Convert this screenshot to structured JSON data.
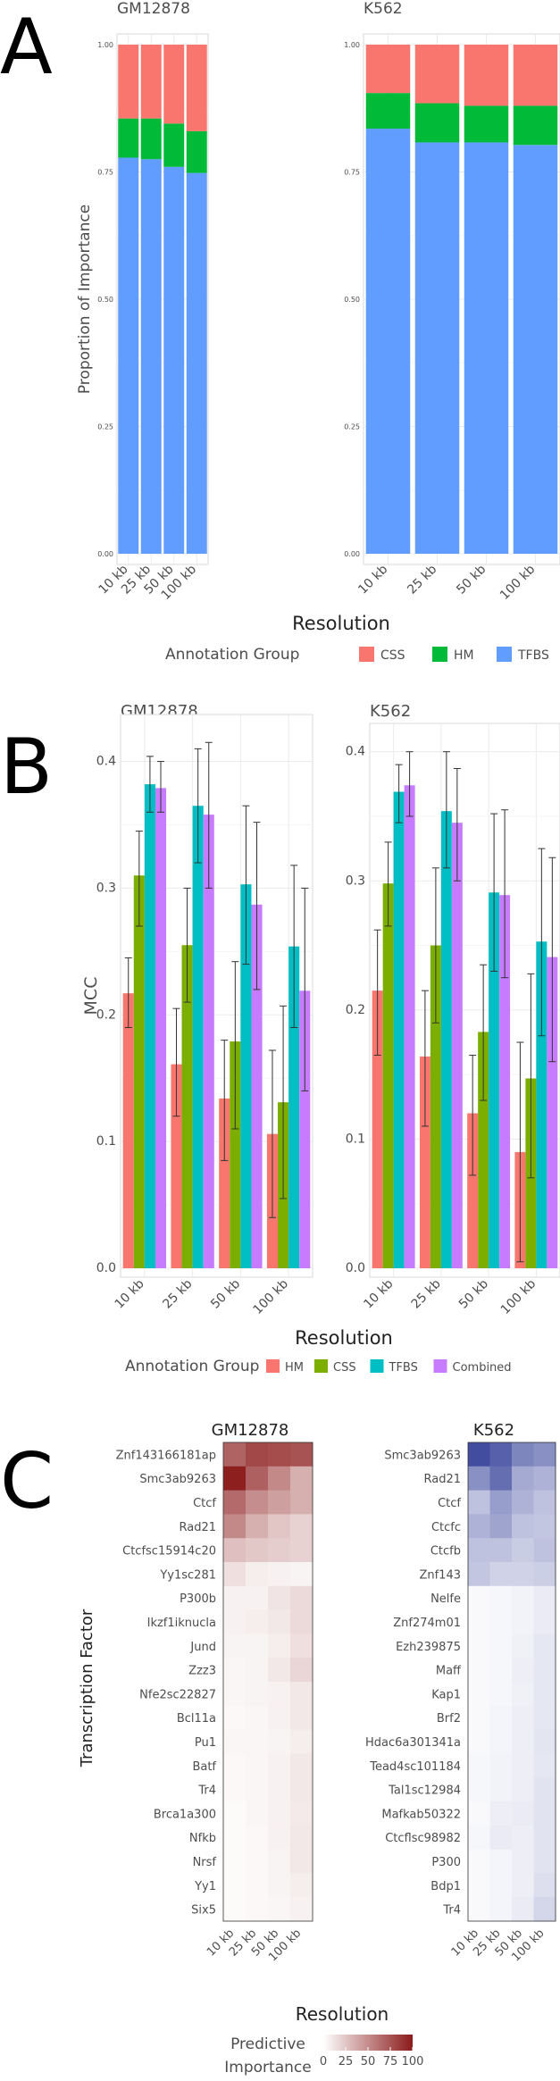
{
  "panels": {
    "a": "A",
    "b": "B",
    "c": "C"
  },
  "chart_data": [
    {
      "type": "bar",
      "stacked": true,
      "panel": "A",
      "facets": [
        "GM12878",
        "K562"
      ],
      "categories": [
        "10 kb",
        "25 kb",
        "50 kb",
        "100 kb"
      ],
      "xlabel": "Resolution",
      "ylabel": "Proportion of Importance",
      "ylim": [
        0,
        1
      ],
      "yticks": [
        "0.00",
        "0.25",
        "0.50",
        "0.75",
        "1.00"
      ],
      "legend_title": "Annotation Group",
      "legend_position": "bottom",
      "grid": true,
      "series": [
        {
          "name": "CSS",
          "color": "#F8766D",
          "values": {
            "GM12878": [
              0.145,
              0.145,
              0.155,
              0.17
            ],
            "K562": [
              0.095,
              0.115,
              0.12,
              0.12
            ]
          }
        },
        {
          "name": "HM",
          "color": "#00BA38",
          "values": {
            "GM12878": [
              0.077,
              0.08,
              0.085,
              0.082
            ],
            "K562": [
              0.07,
              0.077,
              0.072,
              0.077
            ]
          }
        },
        {
          "name": "TFBS",
          "color": "#619CFF",
          "values": {
            "GM12878": [
              0.778,
              0.775,
              0.76,
              0.748
            ],
            "K562": [
              0.835,
              0.808,
              0.808,
              0.803
            ]
          }
        }
      ]
    },
    {
      "type": "bar",
      "panel": "B",
      "facets": [
        "GM12878",
        "K562"
      ],
      "categories": [
        "10 kb",
        "25 kb",
        "50 kb",
        "100 kb"
      ],
      "xlabel": "Resolution",
      "ylabel": "MCC",
      "ylims": {
        "GM12878": [
          0,
          0.43
        ],
        "K562": [
          0,
          0.415
        ]
      },
      "yticks": {
        "GM12878": [
          "0.0",
          "0.1",
          "0.2",
          "0.3",
          "0.4"
        ],
        "K562": [
          "0.0",
          "0.1",
          "0.2",
          "0.3",
          "0.4"
        ]
      },
      "legend_title": "Annotation Group",
      "legend_position": "bottom",
      "grid": true,
      "error_bars": true,
      "series": [
        {
          "name": "HM",
          "color": "#F8766D",
          "values": {
            "GM12878": [
              0.217,
              0.161,
              0.134,
              0.106
            ],
            "K562": [
              0.215,
              0.164,
              0.12,
              0.09
            ]
          },
          "err": {
            "GM12878": [
              [
                0.19,
                0.245
              ],
              [
                0.12,
                0.205
              ],
              [
                0.085,
                0.18
              ],
              [
                0.04,
                0.172
              ]
            ],
            "K562": [
              [
                0.165,
                0.262
              ],
              [
                0.11,
                0.215
              ],
              [
                0.072,
                0.165
              ],
              [
                0.005,
                0.175
              ]
            ]
          }
        },
        {
          "name": "CSS",
          "color": "#7CAE00",
          "values": {
            "GM12878": [
              0.31,
              0.255,
              0.179,
              0.131
            ],
            "K562": [
              0.298,
              0.25,
              0.183,
              0.147
            ]
          },
          "err": {
            "GM12878": [
              [
                0.27,
                0.345
              ],
              [
                0.21,
                0.3
              ],
              [
                0.11,
                0.242
              ],
              [
                0.055,
                0.207
              ]
            ],
            "K562": [
              [
                0.265,
                0.33
              ],
              [
                0.19,
                0.31
              ],
              [
                0.13,
                0.235
              ],
              [
                0.07,
                0.228
              ]
            ]
          }
        },
        {
          "name": "TFBS",
          "color": "#00BFC4",
          "values": {
            "GM12878": [
              0.382,
              0.365,
              0.303,
              0.254
            ],
            "K562": [
              0.369,
              0.354,
              0.291,
              0.253
            ]
          },
          "err": {
            "GM12878": [
              [
                0.36,
                0.404
              ],
              [
                0.32,
                0.41
              ],
              [
                0.24,
                0.365
              ],
              [
                0.19,
                0.318
              ]
            ],
            "K562": [
              [
                0.345,
                0.39
              ],
              [
                0.31,
                0.4
              ],
              [
                0.23,
                0.352
              ],
              [
                0.18,
                0.325
              ]
            ]
          }
        },
        {
          "name": "Combined",
          "color": "#C77CFF",
          "values": {
            "GM12878": [
              0.379,
              0.358,
              0.287,
              0.219
            ],
            "K562": [
              0.374,
              0.345,
              0.289,
              0.241
            ]
          },
          "err": {
            "GM12878": [
              [
                0.36,
                0.4
              ],
              [
                0.3,
                0.415
              ],
              [
                0.22,
                0.352
              ],
              [
                0.14,
                0.3
              ]
            ],
            "K562": [
              [
                0.35,
                0.4
              ],
              [
                0.3,
                0.387
              ],
              [
                0.225,
                0.355
              ],
              [
                0.16,
                0.318
              ]
            ]
          }
        }
      ]
    },
    {
      "type": "heatmap",
      "panel": "C",
      "x": [
        "10 kb",
        "25 kb",
        "50 kb",
        "100 kb"
      ],
      "xlabel": "Resolution",
      "ylabel": "Transcription Factor",
      "legend_title": "Predictive Importance",
      "legend_ticks": [
        "0",
        "25",
        "50",
        "75",
        "100"
      ],
      "legend_range": [
        0,
        100
      ],
      "facets": [
        {
          "name": "GM12878",
          "low": "#ffffff",
          "high": "#8B1A1A",
          "rows": [
            "Znf143166181ap",
            "Smc3ab9263",
            "Ctcf",
            "Rad21",
            "Ctcfsc15914c20",
            "Yy1sc281",
            "P300b",
            "Ikzf1iknucla",
            "Jund",
            "Zzz3",
            "Nfe2sc22827",
            "Bcl11a",
            "Pu1",
            "Batf",
            "Tr4",
            "Brca1a300",
            "Nfkb",
            "Nrsf",
            "Yy1",
            "Six5"
          ],
          "values": [
            [
              68,
              80,
              78,
              75
            ],
            [
              98,
              70,
              52,
              35
            ],
            [
              65,
              50,
              42,
              35
            ],
            [
              52,
              35,
              25,
              20
            ],
            [
              28,
              24,
              22,
              20
            ],
            [
              14,
              8,
              6,
              5
            ],
            [
              6,
              6,
              12,
              16
            ],
            [
              6,
              8,
              10,
              16
            ],
            [
              5,
              5,
              8,
              14
            ],
            [
              4,
              5,
              10,
              18
            ],
            [
              4,
              5,
              6,
              10
            ],
            [
              3,
              4,
              6,
              10
            ],
            [
              4,
              4,
              5,
              8
            ],
            [
              3,
              4,
              6,
              10
            ],
            [
              3,
              4,
              6,
              10
            ],
            [
              2,
              4,
              6,
              9
            ],
            [
              2,
              3,
              6,
              10
            ],
            [
              2,
              3,
              5,
              10
            ],
            [
              2,
              3,
              5,
              8
            ],
            [
              2,
              3,
              4,
              6
            ]
          ]
        },
        {
          "name": "K562",
          "low": "#ffffff",
          "high": "#283593",
          "rows": [
            "Smc3ab9263",
            "Rad21",
            "Ctcf",
            "Ctcfc",
            "Ctcfb",
            "Znf143",
            "Nelfe",
            "Znf274m01",
            "Ezh239875",
            "Maff",
            "Kap1",
            "Brf2",
            "Hdac6a301341a",
            "Tead4sc101184",
            "Tal1sc12984",
            "Mafkab50322",
            "Ctcflsc98982",
            "P300",
            "Bdp1",
            "Tr4"
          ],
          "values": [
            [
              88,
              78,
              60,
              55
            ],
            [
              55,
              72,
              42,
              38
            ],
            [
              30,
              48,
              38,
              30
            ],
            [
              38,
              45,
              30,
              28
            ],
            [
              30,
              30,
              25,
              30
            ],
            [
              28,
              22,
              22,
              24
            ],
            [
              3,
              4,
              6,
              10
            ],
            [
              3,
              4,
              6,
              10
            ],
            [
              3,
              4,
              7,
              12
            ],
            [
              3,
              4,
              8,
              12
            ],
            [
              3,
              4,
              7,
              12
            ],
            [
              3,
              5,
              8,
              12
            ],
            [
              3,
              5,
              8,
              13
            ],
            [
              4,
              6,
              8,
              12
            ],
            [
              4,
              6,
              8,
              14
            ],
            [
              3,
              8,
              10,
              14
            ],
            [
              4,
              10,
              8,
              14
            ],
            [
              3,
              5,
              8,
              14
            ],
            [
              3,
              5,
              8,
              16
            ],
            [
              3,
              5,
              10,
              20
            ]
          ]
        }
      ]
    }
  ]
}
